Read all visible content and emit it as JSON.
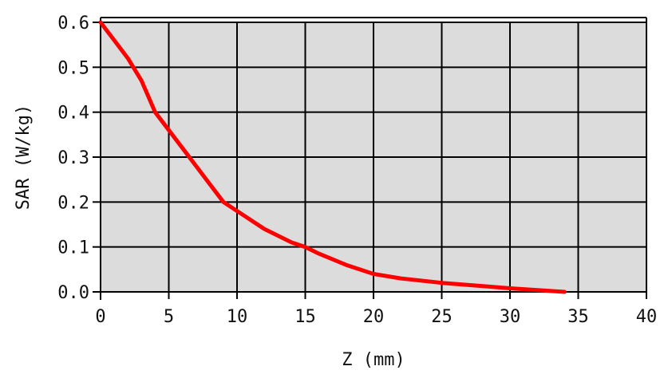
{
  "chart_data": {
    "type": "line",
    "title": "",
    "xlabel": "Z (mm)",
    "ylabel": "SAR (W/kg)",
    "xlim": [
      0,
      40
    ],
    "ylim": [
      0,
      0.6
    ],
    "x_ticks": [
      0,
      5,
      10,
      15,
      20,
      25,
      30,
      35,
      40
    ],
    "y_ticks": [
      0.0,
      0.1,
      0.2,
      0.3,
      0.4,
      0.5,
      0.6
    ],
    "x_tick_labels": [
      "0",
      "5",
      "10",
      "15",
      "20",
      "25",
      "30",
      "35",
      "40"
    ],
    "y_tick_labels": [
      "0.0",
      "0.1",
      "0.2",
      "0.3",
      "0.4",
      "0.5",
      "0.6"
    ],
    "grid": true,
    "background_color": "#dcdcdc",
    "grid_color": "#000000",
    "series": [
      {
        "color": "#ff0000",
        "x": [
          0,
          1,
          2,
          3,
          4,
          5,
          6,
          7,
          8,
          9,
          10,
          12,
          14,
          15,
          16,
          18,
          20,
          22,
          25,
          28,
          30,
          32,
          34
        ],
        "y": [
          0.6,
          0.56,
          0.52,
          0.47,
          0.4,
          0.36,
          0.32,
          0.28,
          0.24,
          0.2,
          0.18,
          0.14,
          0.11,
          0.1,
          0.085,
          0.06,
          0.04,
          0.03,
          0.02,
          0.013,
          0.008,
          0.004,
          0.0
        ]
      }
    ]
  }
}
